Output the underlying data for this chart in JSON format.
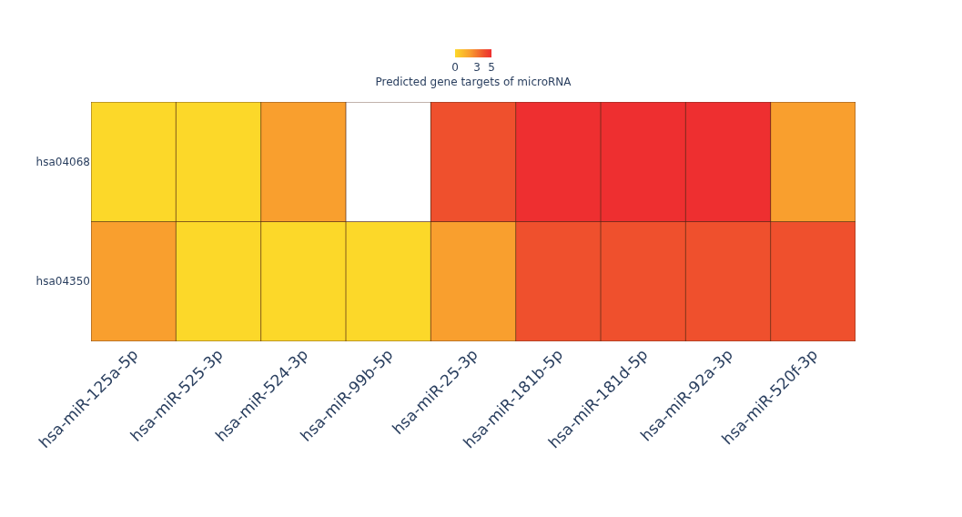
{
  "chart_data": {
    "type": "heatmap",
    "categories": [
      "hsa-miR-125a-5p",
      "hsa-miR-525-3p",
      "hsa-miR-524-3p",
      "hsa-miR-99b-5p",
      "hsa-miR-25-3p",
      "hsa-miR-181b-5p",
      "hsa-miR-181d-5p",
      "hsa-miR-92a-3p",
      "hsa-miR-520f-3p"
    ],
    "y_categories": [
      "hsa04068",
      "hsa04350"
    ],
    "cells": [
      [
        0,
        0,
        2,
        null,
        4,
        5,
        5,
        5,
        2
      ],
      [
        2,
        0,
        0,
        0,
        2,
        4,
        4,
        4,
        4
      ]
    ],
    "clim": [
      0,
      5
    ],
    "cticks": [
      0,
      3,
      5
    ],
    "clabel": "Predicted gene targets of microRNA",
    "colors": [
      "#fcd829",
      "#f99f2e",
      "#ef502d",
      "#ee2f30"
    ]
  }
}
